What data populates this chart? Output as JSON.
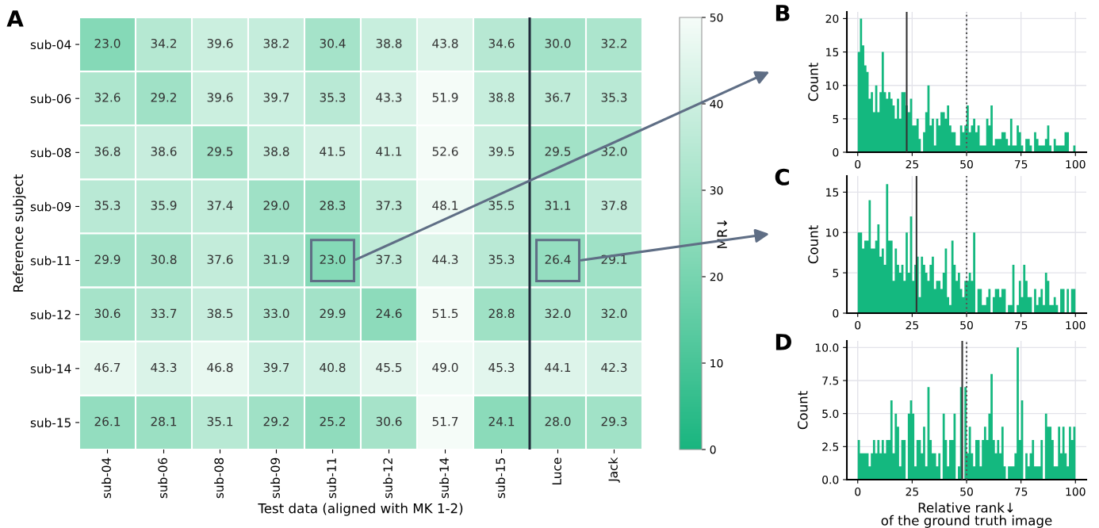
{
  "chart_data": [
    {
      "type": "heatmap",
      "title": "A",
      "xlabel": "Test data (aligned with MK 1-2)",
      "ylabel": "Reference subject",
      "clabel": "MR↓",
      "categories": [
        "sub-04",
        "sub-06",
        "sub-08",
        "sub-09",
        "sub-11",
        "sub-12",
        "sub-14",
        "sub-15",
        "Luce",
        "Jack"
      ],
      "y_categories": [
        "sub-04",
        "sub-06",
        "sub-08",
        "sub-09",
        "sub-11",
        "sub-12",
        "sub-14",
        "sub-15"
      ],
      "cells": [
        [
          23.0,
          34.2,
          39.6,
          38.2,
          30.4,
          38.8,
          43.8,
          34.6,
          30.0,
          32.2
        ],
        [
          32.6,
          29.2,
          39.6,
          39.7,
          35.3,
          43.3,
          51.9,
          38.8,
          36.7,
          35.3
        ],
        [
          36.8,
          38.6,
          29.5,
          38.8,
          41.5,
          41.1,
          52.6,
          39.5,
          29.5,
          32.0
        ],
        [
          35.3,
          35.9,
          37.4,
          29.0,
          28.3,
          37.3,
          48.1,
          35.5,
          31.1,
          37.8
        ],
        [
          29.9,
          30.8,
          37.6,
          31.9,
          23.0,
          37.3,
          44.3,
          35.3,
          26.4,
          29.1
        ],
        [
          30.6,
          33.7,
          38.5,
          33.0,
          29.9,
          24.6,
          51.5,
          28.8,
          32.0,
          32.0
        ],
        [
          46.7,
          43.3,
          46.8,
          39.7,
          40.8,
          45.5,
          49.0,
          45.3,
          44.1,
          42.3
        ],
        [
          26.1,
          28.1,
          35.1,
          29.2,
          25.2,
          30.6,
          51.7,
          24.1,
          28.0,
          29.3
        ]
      ],
      "cell_labels": [
        [
          "23.0",
          "34.2",
          "39.6",
          "38.2",
          "30.4",
          "38.8",
          "43.8",
          "34.6",
          "30.0",
          "32.2"
        ],
        [
          "32.6",
          "29.2",
          "39.6",
          "39.7",
          "35.3",
          "43.3",
          "51.9",
          "38.8",
          "36.7",
          "35.3"
        ],
        [
          "36.8",
          "38.6",
          "29.5",
          "38.8",
          "41.5",
          "41.1",
          "52.6",
          "39.5",
          "29.5",
          "32.0"
        ],
        [
          "35.3",
          "35.9",
          "37.4",
          "29.0",
          "28.3",
          "37.3",
          "48.1",
          "35.5",
          "31.1",
          "37.8"
        ],
        [
          "29.9",
          "30.8",
          "37.6",
          "31.9",
          "23.0",
          "37.3",
          "44.3",
          "35.3",
          "26.4",
          "29.1"
        ],
        [
          "30.6",
          "33.7",
          "38.5",
          "33.0",
          "29.9",
          "24.6",
          "51.5",
          "28.8",
          "32.0",
          "32.0"
        ],
        [
          "46.7",
          "43.3",
          "46.8",
          "39.7",
          "40.8",
          "45.5",
          "49.0",
          "45.3",
          "44.1",
          "42.3"
        ],
        [
          "26.1",
          "28.1",
          "35.1",
          "29.2",
          "25.2",
          "30.6",
          "51.7",
          "24.1",
          "28.0",
          "29.3"
        ]
      ],
      "clim": [
        0,
        50
      ],
      "cticks": [
        0,
        10,
        20,
        30,
        40,
        50
      ]
    },
    {
      "type": "histogram",
      "title": "B",
      "ylabel": "Count",
      "color": "#14b87f",
      "grid": true,
      "bins": [
        0,
        1,
        2,
        3,
        4,
        5,
        6,
        7,
        8,
        9,
        10,
        11,
        12,
        13,
        14,
        15,
        16,
        17,
        18,
        19,
        20,
        21,
        22,
        23,
        24,
        25,
        26,
        27,
        28,
        29,
        30,
        31,
        32,
        33,
        34,
        35,
        36,
        37,
        38,
        39,
        40,
        41,
        42,
        43,
        44,
        45,
        46,
        47,
        48,
        49,
        50,
        51,
        52,
        53,
        54,
        55,
        56,
        57,
        58,
        59,
        60,
        61,
        62,
        63,
        64,
        65,
        66,
        67,
        68,
        69,
        70,
        71,
        72,
        73,
        74,
        75,
        76,
        77,
        78,
        79,
        80,
        81,
        82,
        83,
        84,
        85,
        86,
        87,
        88,
        89,
        90,
        91,
        92,
        93,
        94,
        95,
        96,
        97,
        98,
        99,
        100
      ],
      "values": [
        15,
        20,
        16,
        13,
        12,
        8,
        9,
        6,
        10,
        6,
        9,
        15,
        9,
        8,
        9,
        8,
        7,
        5,
        8,
        5,
        9,
        9,
        7,
        6,
        8,
        4,
        4,
        5,
        2,
        0,
        3,
        6,
        10,
        4,
        5,
        1,
        5,
        4,
        6,
        6,
        5,
        7,
        4,
        3,
        3,
        1,
        1,
        4,
        3,
        4,
        7,
        3,
        4,
        5,
        3,
        4,
        1,
        1,
        1,
        5,
        4,
        7,
        1,
        2,
        2,
        2,
        3,
        3,
        2,
        1,
        5,
        1,
        1,
        4,
        3,
        1,
        0,
        2,
        2,
        1,
        0,
        3,
        2,
        1,
        1,
        1,
        2,
        4,
        1,
        0,
        2,
        1,
        1,
        1,
        1,
        3,
        3,
        0,
        0,
        1
      ],
      "xlim": [
        -5,
        105
      ],
      "xticks": [
        0,
        25,
        50,
        75,
        100
      ],
      "ylim": [
        0,
        21
      ],
      "yticks": [
        0,
        5,
        10,
        15,
        20
      ],
      "ref_lines": [
        {
          "axis": "x",
          "value": 22.5,
          "color": "#333333",
          "line_style": "solid"
        },
        {
          "axis": "x",
          "value": 50,
          "color": "#555555",
          "line_style": "dotted"
        }
      ]
    },
    {
      "type": "histogram",
      "title": "C",
      "ylabel": "Count",
      "color": "#14b87f",
      "grid": true,
      "bins": [
        0,
        1,
        2,
        3,
        4,
        5,
        6,
        7,
        8,
        9,
        10,
        11,
        12,
        13,
        14,
        15,
        16,
        17,
        18,
        19,
        20,
        21,
        22,
        23,
        24,
        25,
        26,
        27,
        28,
        29,
        30,
        31,
        32,
        33,
        34,
        35,
        36,
        37,
        38,
        39,
        40,
        41,
        42,
        43,
        44,
        45,
        46,
        47,
        48,
        49,
        50,
        51,
        52,
        53,
        54,
        55,
        56,
        57,
        58,
        59,
        60,
        61,
        62,
        63,
        64,
        65,
        66,
        67,
        68,
        69,
        70,
        71,
        72,
        73,
        74,
        75,
        76,
        77,
        78,
        79,
        80,
        81,
        82,
        83,
        84,
        85,
        86,
        87,
        88,
        89,
        90,
        91,
        92,
        93,
        94,
        95,
        96,
        97,
        98,
        99,
        100
      ],
      "values": [
        10,
        10,
        8,
        9,
        9,
        14,
        8,
        8,
        9,
        11,
        7,
        8,
        6,
        16,
        9,
        9,
        4,
        8,
        6,
        5,
        6,
        4,
        10,
        5,
        12,
        4,
        6,
        7,
        2,
        7,
        6,
        5,
        4,
        6,
        7,
        3,
        4,
        4,
        3,
        5,
        8,
        2,
        1,
        9,
        6,
        4,
        5,
        3,
        2,
        4,
        4,
        5,
        4,
        10,
        0,
        3,
        3,
        1,
        1,
        2,
        3,
        0,
        2,
        3,
        3,
        2,
        3,
        3,
        0,
        1,
        1,
        6,
        0,
        1,
        4,
        2,
        6,
        4,
        2,
        2,
        0,
        3,
        1,
        2,
        3,
        1,
        5,
        4,
        1,
        1,
        2,
        1,
        0,
        3,
        3,
        0,
        3,
        0,
        3,
        3
      ],
      "xlim": [
        -5,
        105
      ],
      "xticks": [
        0,
        25,
        50,
        75,
        100
      ],
      "ylim": [
        0,
        17
      ],
      "yticks": [
        0,
        5,
        10,
        15
      ],
      "ref_lines": [
        {
          "axis": "x",
          "value": 27,
          "color": "#333333",
          "line_style": "solid"
        },
        {
          "axis": "x",
          "value": 50,
          "color": "#555555",
          "line_style": "dotted"
        }
      ]
    },
    {
      "type": "histogram",
      "title": "D",
      "ylabel": "Count",
      "xlabel": "Relative rank↓\nof the ground truth image",
      "color": "#14b87f",
      "grid": true,
      "bins": [
        0,
        1,
        2,
        3,
        4,
        5,
        6,
        7,
        8,
        9,
        10,
        11,
        12,
        13,
        14,
        15,
        16,
        17,
        18,
        19,
        20,
        21,
        22,
        23,
        24,
        25,
        26,
        27,
        28,
        29,
        30,
        31,
        32,
        33,
        34,
        35,
        36,
        37,
        38,
        39,
        40,
        41,
        42,
        43,
        44,
        45,
        46,
        47,
        48,
        49,
        50,
        51,
        52,
        53,
        54,
        55,
        56,
        57,
        58,
        59,
        60,
        61,
        62,
        63,
        64,
        65,
        66,
        67,
        68,
        69,
        70,
        71,
        72,
        73,
        74,
        75,
        76,
        77,
        78,
        79,
        80,
        81,
        82,
        83,
        84,
        85,
        86,
        87,
        88,
        89,
        90,
        91,
        92,
        93,
        94,
        95,
        96,
        97,
        98,
        99,
        100
      ],
      "values": [
        3,
        2,
        2,
        2,
        2,
        1,
        2,
        3,
        2,
        3,
        2,
        3,
        2,
        3,
        3,
        6,
        2,
        5,
        4,
        1,
        3,
        3,
        0,
        5,
        6,
        5,
        1,
        3,
        3,
        2,
        4,
        1,
        7,
        3,
        2,
        2,
        1,
        2,
        0,
        5,
        3,
        1,
        3,
        3,
        5,
        0,
        1,
        7,
        0,
        7,
        2,
        4,
        2,
        1,
        3,
        3,
        1,
        3,
        4,
        3,
        5,
        8,
        3,
        2,
        3,
        2,
        4,
        1,
        0,
        1,
        1,
        1,
        2,
        10,
        3,
        6,
        0,
        2,
        1,
        2,
        3,
        1,
        1,
        1,
        3,
        0,
        5,
        4,
        4,
        3,
        1,
        1,
        4,
        2,
        4,
        2,
        1,
        4,
        3,
        4
      ],
      "xlim": [
        -5,
        105
      ],
      "xticks": [
        0,
        25,
        50,
        75,
        100
      ],
      "ylim": [
        0,
        10.5
      ],
      "yticks": [
        {
          "value": 0,
          "label": "0.0"
        },
        {
          "value": 2.5,
          "label": "2.5"
        },
        {
          "value": 5,
          "label": "5.0"
        },
        {
          "value": 7.5,
          "label": "7.5"
        },
        {
          "value": 10,
          "label": "10.0"
        }
      ],
      "ref_lines": [
        {
          "axis": "x",
          "value": 48,
          "color": "#333333",
          "line_style": "solid"
        },
        {
          "axis": "x",
          "value": 50,
          "color": "#555555",
          "line_style": "dotted"
        }
      ]
    }
  ]
}
